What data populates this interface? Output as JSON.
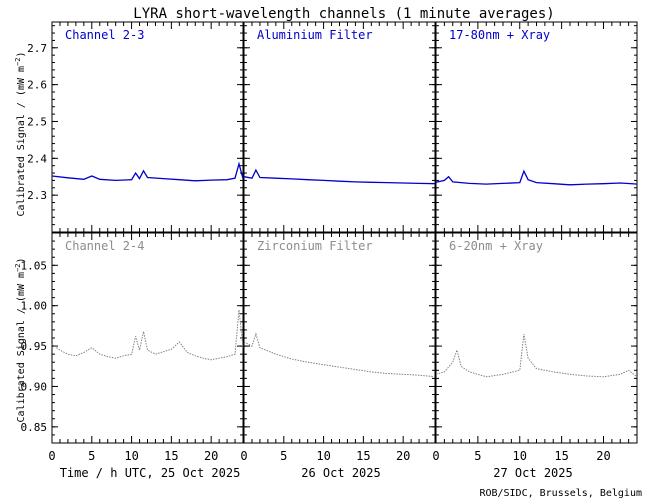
{
  "title": "LYRA short-wavelength channels (1 minute averages)",
  "credit": "ROB/SIDC, Brussels, Belgium",
  "colors": {
    "top_series": "#0000cc",
    "top_label": "#0000cc",
    "bottom_series": "#808080",
    "bottom_label": "#8c8c8c",
    "axes": "#000000"
  },
  "x_labels": {
    "day1": "Time / h UTC, 25 Oct 2025",
    "day2": "26 Oct 2025",
    "day3": "27 Oct 2025"
  },
  "chart_data": [
    {
      "type": "line",
      "row": "top",
      "ylabel": "Calibrated Signal / (mW m",
      "ylabel_sup": "−2",
      "ylabel_close": ")",
      "ylim": [
        2.2,
        2.77
      ],
      "yticks": [
        2.3,
        2.4,
        2.5,
        2.6,
        2.7
      ],
      "ytick_labels": [
        "2.3",
        "2.4",
        "2.5",
        "2.6",
        "2.7"
      ],
      "xlim_hours": [
        0,
        24
      ],
      "xticks": [
        0,
        5,
        10,
        15,
        20
      ],
      "xtick_labels": [
        "0",
        "5",
        "10",
        "15",
        "20"
      ],
      "panels": [
        {
          "label": "Channel 2-3",
          "x": [
            0,
            2,
            4,
            5,
            6,
            8,
            10,
            10.5,
            11,
            11.5,
            12,
            14,
            16,
            18,
            20,
            22,
            23,
            23.5,
            24
          ],
          "y": [
            2.352,
            2.347,
            2.343,
            2.352,
            2.343,
            2.34,
            2.342,
            2.36,
            2.345,
            2.366,
            2.348,
            2.345,
            2.342,
            2.339,
            2.341,
            2.342,
            2.346,
            2.385,
            2.345
          ]
        },
        {
          "label": "Aluminium Filter",
          "x": [
            0,
            1,
            1.5,
            2,
            4,
            6,
            8,
            10,
            12,
            14,
            16,
            18,
            20,
            22,
            24
          ],
          "y": [
            2.35,
            2.346,
            2.368,
            2.348,
            2.346,
            2.344,
            2.342,
            2.34,
            2.338,
            2.336,
            2.335,
            2.334,
            2.333,
            2.332,
            2.331
          ]
        },
        {
          "label": "17-80nm + Xray",
          "x": [
            0,
            1,
            1.5,
            2,
            4,
            6,
            8,
            10,
            10.5,
            11,
            12,
            14,
            16,
            18,
            20,
            22,
            24
          ],
          "y": [
            2.335,
            2.34,
            2.35,
            2.336,
            2.332,
            2.33,
            2.332,
            2.334,
            2.365,
            2.342,
            2.334,
            2.331,
            2.328,
            2.33,
            2.331,
            2.333,
            2.33
          ]
        }
      ]
    },
    {
      "type": "line",
      "row": "bottom",
      "ylabel": "Calibrated Signal / (mW m",
      "ylabel_sup": "−2",
      "ylabel_close": ")",
      "ylim": [
        0.83,
        1.09
      ],
      "yticks": [
        0.85,
        0.9,
        0.95,
        1.0,
        1.05
      ],
      "ytick_labels": [
        "0.85",
        "0.90",
        "0.95",
        "1.00",
        "1.05"
      ],
      "xlim_hours": [
        0,
        24
      ],
      "xticks": [
        0,
        5,
        10,
        15,
        20
      ],
      "xtick_labels": [
        "0",
        "5",
        "10",
        "15",
        "20"
      ],
      "panels": [
        {
          "label": "Channel 2-4",
          "x": [
            0,
            1,
            2,
            3,
            4,
            5,
            6,
            7,
            8,
            9,
            10,
            10.5,
            11,
            11.5,
            12,
            13,
            14,
            15,
            16,
            17,
            18,
            19,
            20,
            21,
            22,
            23,
            23.5,
            24
          ],
          "y": [
            0.952,
            0.945,
            0.94,
            0.938,
            0.942,
            0.948,
            0.94,
            0.937,
            0.935,
            0.938,
            0.94,
            0.962,
            0.945,
            0.968,
            0.945,
            0.94,
            0.943,
            0.946,
            0.955,
            0.942,
            0.938,
            0.935,
            0.933,
            0.935,
            0.937,
            0.94,
            0.995,
            0.948
          ]
        },
        {
          "label": "Zirconium Filter",
          "x": [
            0,
            1,
            1.5,
            2,
            3,
            4,
            5,
            6,
            8,
            10,
            12,
            14,
            16,
            18,
            20,
            22,
            24
          ],
          "y": [
            0.955,
            0.95,
            0.965,
            0.948,
            0.944,
            0.94,
            0.937,
            0.934,
            0.93,
            0.927,
            0.924,
            0.921,
            0.918,
            0.916,
            0.915,
            0.914,
            0.912
          ]
        },
        {
          "label": "6-20nm + Xray",
          "x": [
            0,
            1,
            2,
            2.5,
            3,
            4,
            6,
            8,
            10,
            10.5,
            11,
            12,
            14,
            16,
            18,
            20,
            22,
            23,
            24
          ],
          "y": [
            0.915,
            0.918,
            0.93,
            0.945,
            0.925,
            0.918,
            0.912,
            0.915,
            0.92,
            0.965,
            0.935,
            0.922,
            0.918,
            0.915,
            0.913,
            0.912,
            0.915,
            0.92,
            0.912
          ]
        }
      ]
    }
  ]
}
